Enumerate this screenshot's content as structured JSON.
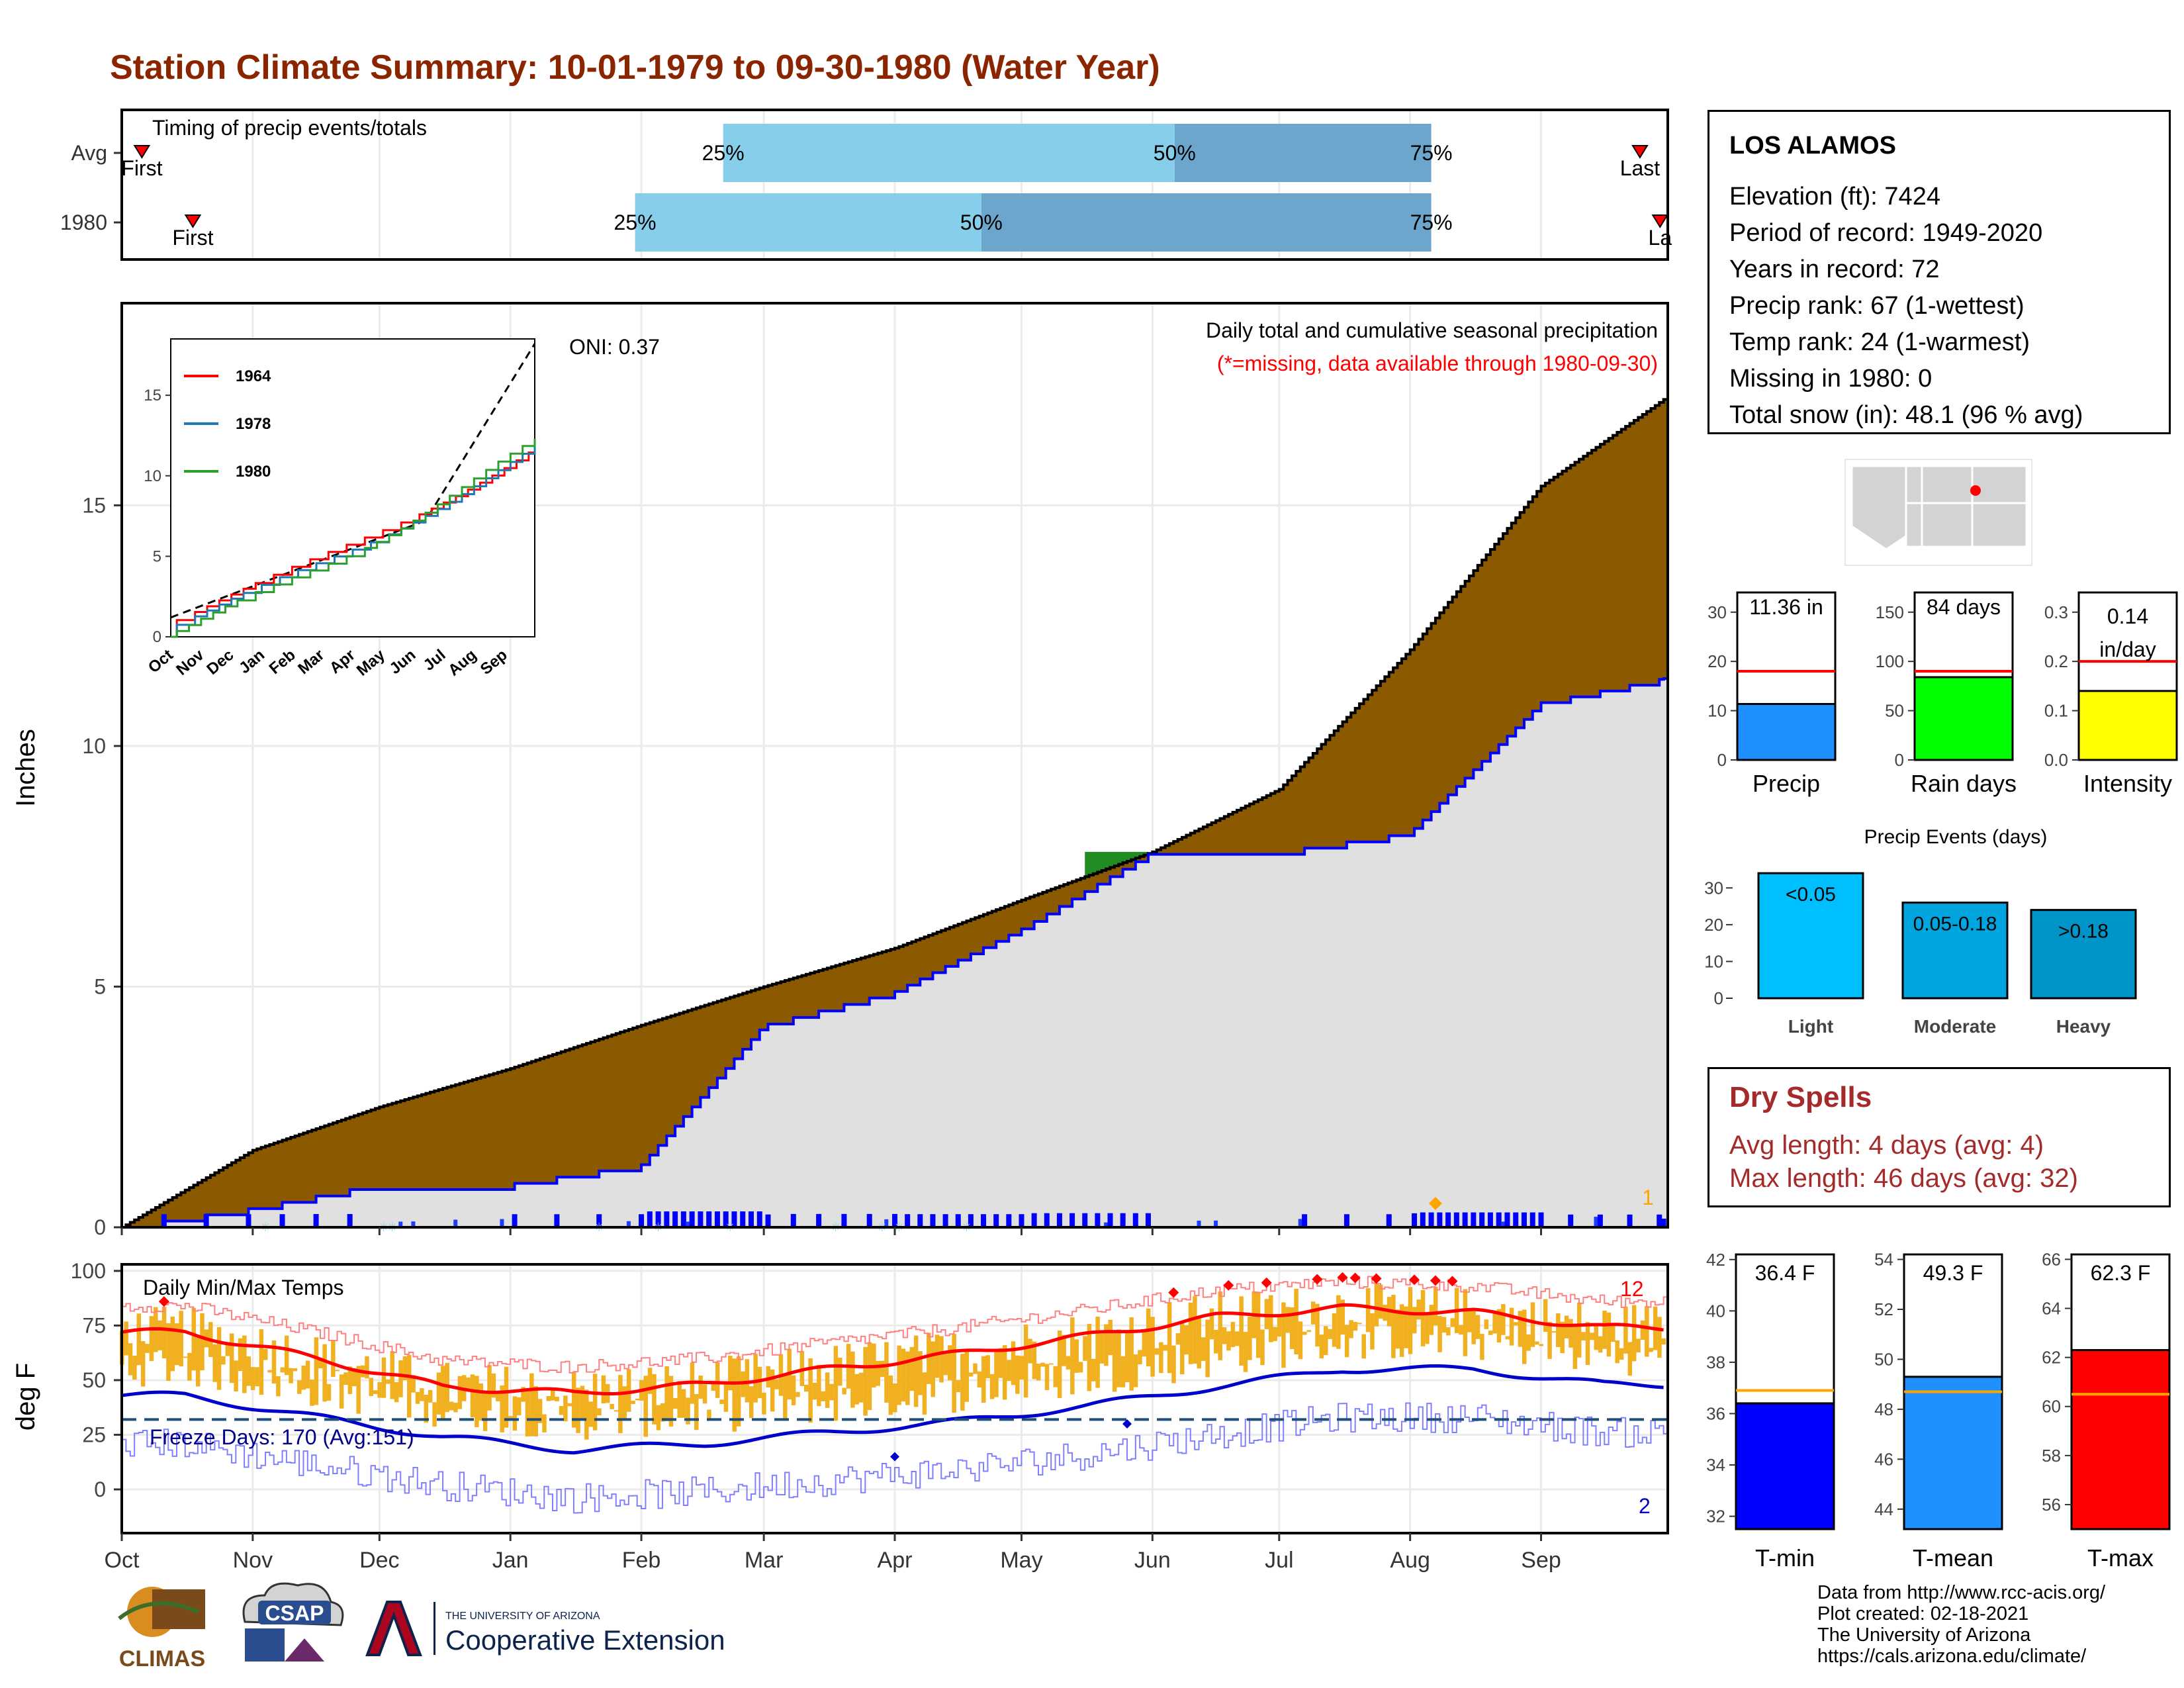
{
  "title": "Station Climate Summary: 10-01-1979 to 09-30-1980 (Water Year)",
  "timing": {
    "label": "Timing of precip events/totals",
    "rows": [
      {
        "label": "Avg",
        "p25": 0.389,
        "p50": 0.681,
        "p75": 0.847,
        "first": 0.013,
        "last": 0.982,
        "first_label": "First",
        "last_label": "Last"
      },
      {
        "label": "1980",
        "p25": 0.332,
        "p50": 0.556,
        "p75": 0.847,
        "first": 0.046,
        "last": 0.995,
        "first_label": "First",
        "last_label": "La"
      }
    ],
    "pct_labels": [
      "25%",
      "50%",
      "75%"
    ],
    "colors": {
      "light": "#87ceeb",
      "dark": "#6ca6cd",
      "marker": "#ff0000"
    }
  },
  "info": {
    "station": "LOS ALAMOS",
    "lines": [
      "Elevation (ft): 7424",
      "Period of record: 1949-2020",
      "Years in record: 72",
      "Precip rank: 67 (1-wettest)",
      "Temp rank: 24 (1-warmest)",
      "Missing in 1980: 0",
      "Total snow (in): 48.1 (96 % avg)"
    ]
  },
  "precip": {
    "ylabel": "Inches",
    "annotation_title": "Daily total and cumulative seasonal precipitation",
    "annotation_missing": "(*=missing, data available through 1980-09-30)",
    "oni": "ONI: 0.37",
    "corner_count": "1",
    "colors": {
      "above": "#8b5a00",
      "below": "#e0e0e0",
      "wet": "#228b22",
      "obs_line": "#0000ff",
      "avg_line": "#000000"
    }
  },
  "inset": {
    "legend": [
      "1964",
      "1978",
      "1980"
    ],
    "colors": [
      "#ff0000",
      "#1f77b4",
      "#2ca02c"
    ]
  },
  "temps": {
    "ylabel": "deg F",
    "label": "Daily Min/Max Temps",
    "freeze": "Freeze Days: 170 (Avg:151)",
    "record_high_count": "12",
    "record_low_count": "2",
    "colors": {
      "bar": "#f0b020",
      "max": "#ff0000",
      "min": "#0000cd"
    }
  },
  "x_months": [
    "Oct",
    "Nov",
    "Dec",
    "Jan",
    "Feb",
    "Mar",
    "Apr",
    "May",
    "Jun",
    "Jul",
    "Aug",
    "Sep"
  ],
  "summary_bars": [
    {
      "label": "Precip",
      "value": 11.36,
      "avg": 18.0,
      "text": "11.36 in",
      "ticks": [
        0,
        10,
        20,
        30
      ],
      "max": 34,
      "color": "#1e90ff"
    },
    {
      "label": "Rain days",
      "value": 84,
      "avg": 90,
      "text": "84 days",
      "ticks": [
        0,
        50,
        100,
        150
      ],
      "max": 170,
      "color": "#00ff00"
    },
    {
      "label": "Intensity",
      "value": 0.14,
      "avg": 0.2,
      "text": "0.14 in/day",
      "ticks": [
        "0.0",
        "0.1",
        "0.2",
        "0.3"
      ],
      "max": 0.34,
      "color": "#ffff00"
    }
  ],
  "events": {
    "title": "Precip Events (days)",
    "categories": [
      "Light",
      "Moderate",
      "Heavy"
    ],
    "values": [
      34,
      26,
      24
    ],
    "labels": [
      "<0.05",
      "0.05-0.18",
      ">0.18"
    ],
    "ticks": [
      0,
      10,
      20,
      30
    ],
    "colors": [
      "#00bfff",
      "#00a5e0",
      "#0095c8"
    ]
  },
  "dry_spells": {
    "title": "Dry Spells",
    "avg": "Avg length: 4 days (avg: 4)",
    "max": "Max length: 46 days (avg: 32)"
  },
  "temp_bars": [
    {
      "label": "T-min",
      "value": 36.4,
      "avg": 36.9,
      "text": "36.4 F",
      "ticks": [
        32,
        34,
        36,
        38,
        40,
        42
      ],
      "min": 31.5,
      "max": 42.2,
      "color": "#0000ff"
    },
    {
      "label": "T-mean",
      "value": 49.3,
      "avg": 48.7,
      "text": "49.3 F",
      "ticks": [
        44,
        46,
        48,
        50,
        52,
        54
      ],
      "min": 43.2,
      "max": 54.2,
      "color": "#1e90ff"
    },
    {
      "label": "T-max",
      "value": 62.3,
      "avg": 60.5,
      "text": "62.3 F",
      "ticks": [
        56,
        58,
        60,
        62,
        64,
        66
      ],
      "min": 55.0,
      "max": 66.2,
      "color": "#ff0000"
    }
  ],
  "credits": [
    "Data from http://www.rcc-acis.org/",
    "Plot created: 02-18-2021",
    "The University of Arizona",
    "https://cals.arizona.edu/climate/"
  ],
  "logos": {
    "climas": "CLIMAS",
    "csap": "CSAP",
    "ua_small": "THE UNIVERSITY OF ARIZONA",
    "ua_big": "Cooperative Extension"
  },
  "chart_data": [
    {
      "type": "area",
      "title": "Daily total and cumulative seasonal precipitation",
      "ylabel": "Inches",
      "ylim": [
        0,
        19
      ],
      "x": [
        "Oct",
        "Nov",
        "Dec",
        "Jan",
        "Feb",
        "Mar",
        "Apr",
        "May",
        "Jun",
        "Jul",
        "Aug",
        "Sep",
        "Sep-30"
      ],
      "series": [
        {
          "name": "",
          "values": [
            0,
            1.6,
            2.5,
            3.3,
            4.2,
            5.0,
            5.8,
            6.8,
            7.8,
            9.1,
            12.0,
            15.4,
            17.2
          ]
        },
        {
          "name": "",
          "values": [
            0,
            0.4,
            0.9,
            0.9,
            1.3,
            4.2,
            4.9,
            6.2,
            7.8,
            7.8,
            8.2,
            10.9,
            11.4
          ]
        }
      ]
    },
    {
      "type": "line",
      "ylabel": "deg F",
      "ylim": [
        -20,
        103
      ],
      "x": [
        "Oct",
        "Nov",
        "Dec",
        "Jan",
        "Feb",
        "Mar",
        "Apr",
        "May",
        "Jun",
        "Jul",
        "Aug",
        "Sep"
      ],
      "series": [
        {
          "name": "",
          "values": [
            72,
            60,
            47,
            44,
            48,
            55,
            62,
            70,
            79,
            83,
            81,
            74
          ]
        },
        {
          "name": "",
          "values": [
            43,
            33,
            24,
            18,
            21,
            26,
            31,
            38,
            47,
            55,
            55,
            48
          ]
        }
      ]
    },
    {
      "type": "bar",
      "title": "Precip Events (days)",
      "categories": [
        "Light",
        "Moderate",
        "Heavy"
      ],
      "values": [
        34,
        26,
        24
      ]
    }
  ]
}
